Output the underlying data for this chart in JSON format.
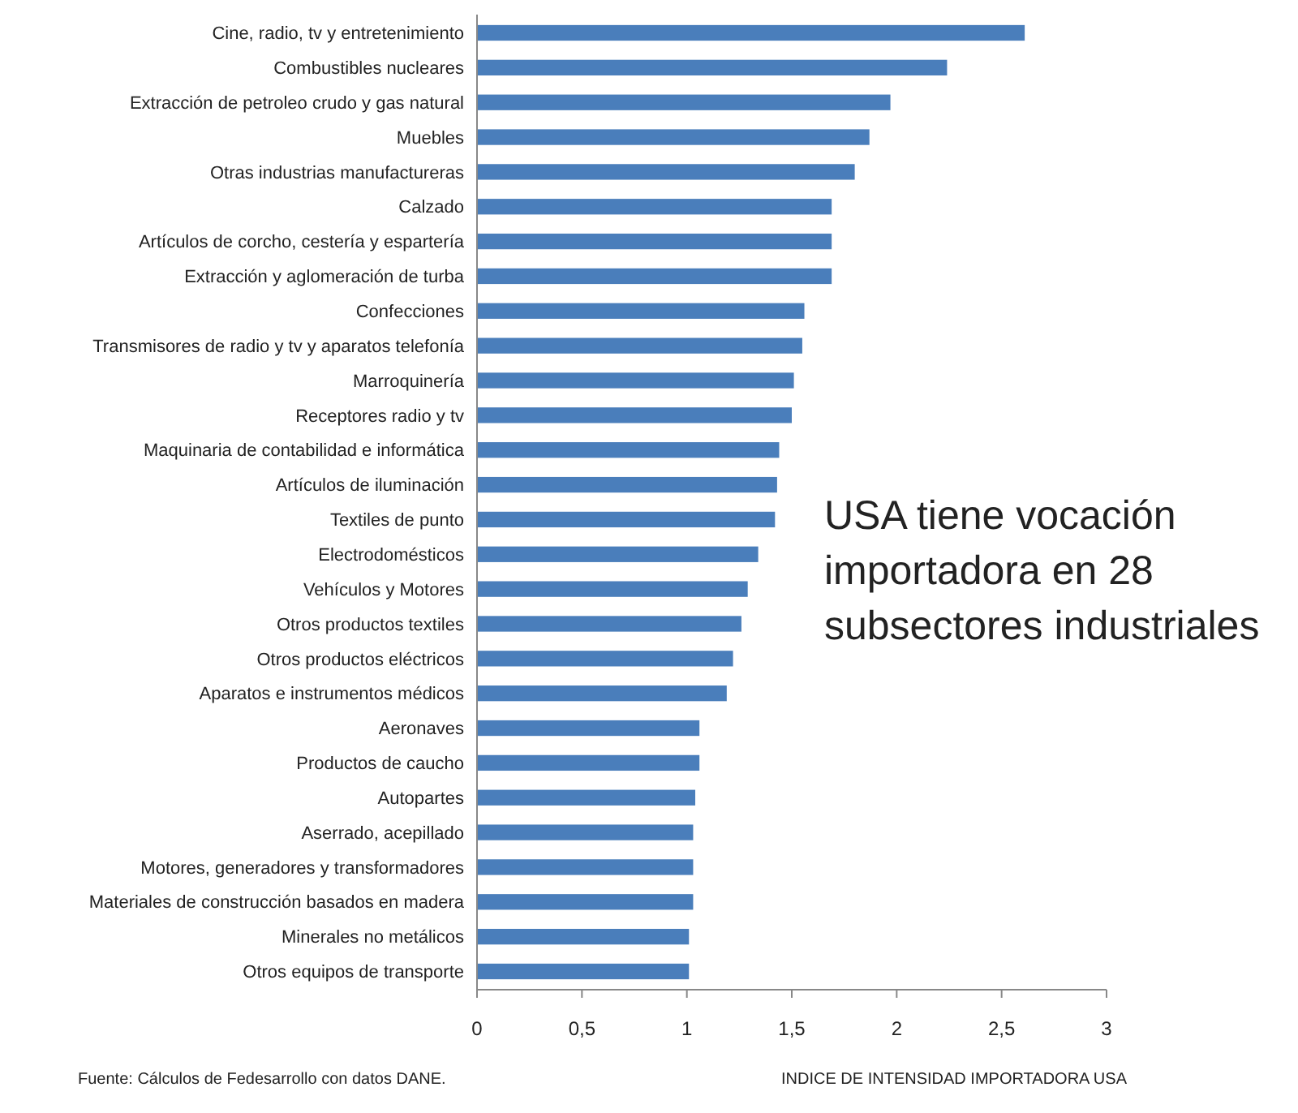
{
  "chart_data": {
    "type": "bar",
    "orientation": "horizontal",
    "xlabel": "INDICE DE INTENSIDAD IMPORTADORA USA",
    "categories": [
      "Cine, radio, tv y entretenimiento",
      "Combustibles nucleares",
      "Extracción de petroleo crudo y gas natural",
      "Muebles",
      "Otras industrias manufactureras",
      "Calzado",
      "Artículos de corcho, cestería y espartería",
      "Extracción y aglomeración de turba",
      "Confecciones",
      "Transmisores de radio y tv y aparatos telefonía",
      "Marroquinería",
      "Receptores radio y tv",
      "Maquinaria de contabilidad e informática",
      "Artículos de iluminación",
      "Textiles de punto",
      "Electrodomésticos",
      "Vehículos y Motores",
      "Otros productos textiles",
      "Otros productos eléctricos",
      "Aparatos e instrumentos médicos",
      "Aeronaves",
      "Productos de caucho",
      "Autopartes",
      "Aserrado, acepillado",
      "Motores, generadores y transformadores",
      "Materiales de construcción basados en madera",
      "Minerales no metálicos",
      "Otros equipos de transporte"
    ],
    "values": [
      2.61,
      2.24,
      1.97,
      1.87,
      1.8,
      1.69,
      1.69,
      1.69,
      1.56,
      1.55,
      1.51,
      1.5,
      1.44,
      1.43,
      1.42,
      1.34,
      1.29,
      1.26,
      1.22,
      1.19,
      1.06,
      1.06,
      1.04,
      1.03,
      1.03,
      1.03,
      1.01,
      1.01
    ],
    "color": "#4a7ebb",
    "xlim": [
      0,
      3
    ],
    "xticks": [
      0,
      {
        "value": 0.5,
        "label": "0,5"
      },
      1,
      {
        "value": 1.5,
        "label": "1,5"
      },
      2,
      {
        "value": 2.5,
        "label": "2,5"
      },
      3
    ],
    "grid": false,
    "annotations": [
      "USA tiene vocación importadora en 28 subsectores industriales",
      "Fuente: Cálculos de Fedesarrollo con datos DANE."
    ]
  }
}
